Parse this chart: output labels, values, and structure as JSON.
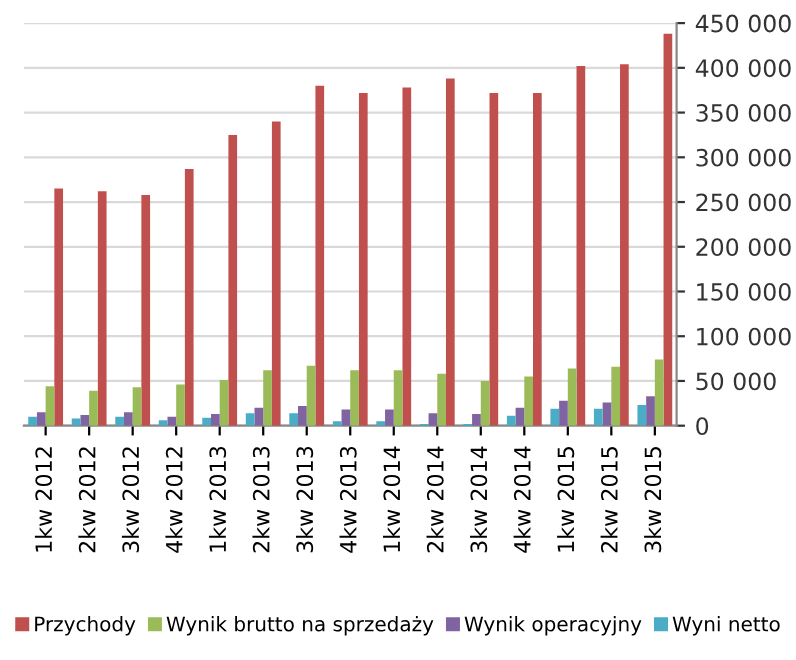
{
  "chart_data": {
    "type": "bar",
    "categories": [
      "1kw 2012",
      "2kw 2012",
      "3kw 2012",
      "4kw 2012",
      "1kw 2013",
      "2kw 2013",
      "3kw 2013",
      "4kw 2013",
      "1kw 2014",
      "2kw 2014",
      "3kw 2014",
      "4kw 2014",
      "1kw 2015",
      "2kw 2015",
      "3kw 2015"
    ],
    "series": [
      {
        "name": "Przychody",
        "color": "#c0504d",
        "values": [
          265000,
          262000,
          258000,
          287000,
          325000,
          340000,
          380000,
          372000,
          378000,
          388000,
          372000,
          372000,
          402000,
          404000,
          438000
        ]
      },
      {
        "name": "Wynik brutto na sprzedaży",
        "color": "#9bbb59",
        "values": [
          44000,
          39000,
          43000,
          46000,
          51000,
          62000,
          67000,
          62000,
          62000,
          58000,
          50000,
          55000,
          64000,
          66000,
          74000
        ]
      },
      {
        "name": "Wynik operacyjny",
        "color": "#8064a2",
        "values": [
          15000,
          12000,
          15000,
          10000,
          13000,
          20000,
          22000,
          18000,
          18000,
          14000,
          13000,
          20000,
          28000,
          26000,
          33000
        ]
      },
      {
        "name": "Wyni netto",
        "color": "#4bacc6",
        "values": [
          10000,
          8000,
          10000,
          6000,
          9000,
          14000,
          14000,
          5000,
          5000,
          2000,
          2000,
          11000,
          19000,
          19000,
          23000
        ]
      }
    ],
    "ylim": [
      0,
      450000
    ],
    "yticks": [
      {
        "value": 0,
        "label": "0"
      },
      {
        "value": 50000,
        "label": "50 000"
      },
      {
        "value": 100000,
        "label": "100 000"
      },
      {
        "value": 150000,
        "label": "150 000"
      },
      {
        "value": 200000,
        "label": "200 000"
      },
      {
        "value": 250000,
        "label": "250 000"
      },
      {
        "value": 300000,
        "label": "300 000"
      },
      {
        "value": 350000,
        "label": "350 000"
      },
      {
        "value": 400000,
        "label": "400 000"
      },
      {
        "value": 450000,
        "label": "450 000"
      }
    ],
    "grid": "y",
    "legend": "bottom"
  }
}
